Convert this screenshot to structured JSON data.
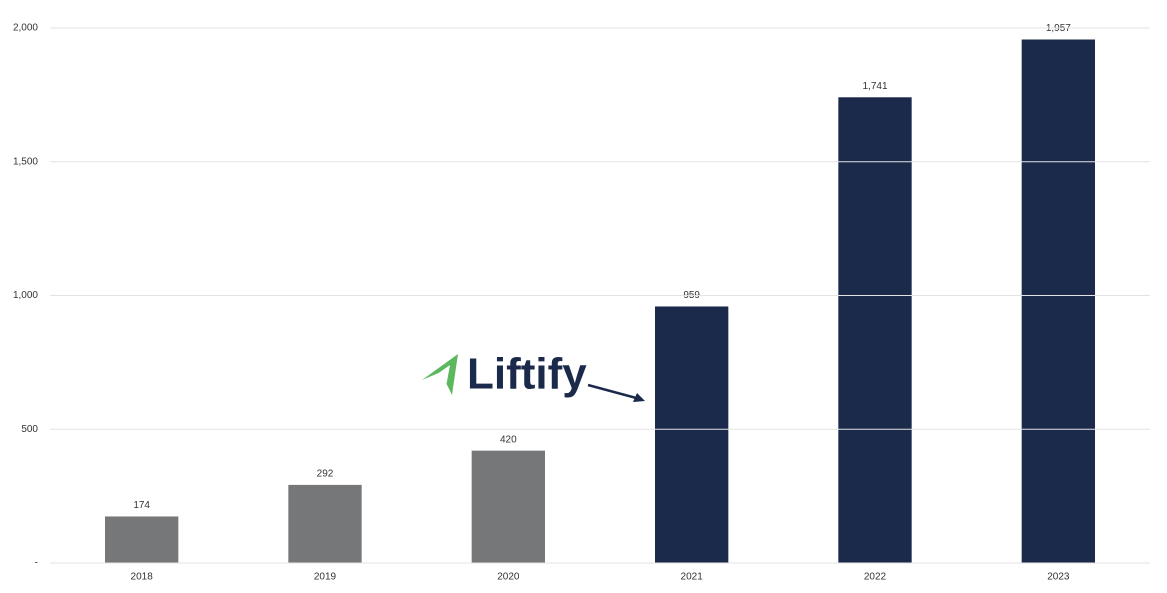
{
  "chart_data": {
    "type": "bar",
    "categories": [
      "2018",
      "2019",
      "2020",
      "2021",
      "2022",
      "2023"
    ],
    "values": [
      174,
      292,
      420,
      959,
      1741,
      1957
    ],
    "value_labels": [
      "174",
      "292",
      "420",
      "959",
      "1,741",
      "1,957"
    ],
    "colors": [
      "#767779",
      "#767779",
      "#767779",
      "#1b2a4a",
      "#1b2a4a",
      "#1b2a4a"
    ],
    "ylim": [
      0,
      2000
    ],
    "yticks": [
      {
        "value": 0,
        "label": "-"
      },
      500,
      {
        "value": 1000,
        "label": "1,000"
      },
      {
        "value": 1500,
        "label": "1,500"
      },
      {
        "value": 2000,
        "label": "2,000"
      }
    ],
    "grid": true,
    "annotation": "Liftify"
  }
}
